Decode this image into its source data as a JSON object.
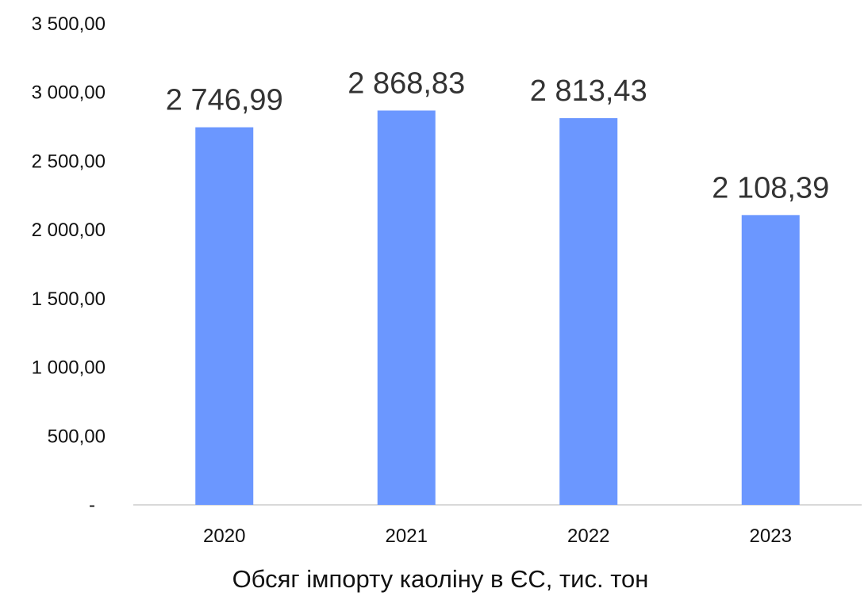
{
  "chart_data": {
    "type": "bar",
    "categories": [
      "2020",
      "2021",
      "2022",
      "2023"
    ],
    "values": [
      2746.99,
      2868.83,
      2813.43,
      2108.39
    ],
    "data_labels": [
      "2 746,99",
      "2 868,83",
      "2 813,43",
      "2 108,39"
    ],
    "y_ticks": [
      0,
      500,
      1000,
      1500,
      2000,
      2500,
      3000,
      3500
    ],
    "y_tick_labels": [
      "-",
      "500,00",
      "1 000,00",
      "1 500,00",
      "2 000,00",
      "2 500,00",
      "3 000,00",
      "3 500,00"
    ],
    "ylim": [
      0,
      3500
    ],
    "xlabel": "Обсяг імпорту каоліну  в ЄС, тис. тон",
    "ylabel": "",
    "title": "",
    "grid": false,
    "legend": "none",
    "colors": {
      "bar": "#6B97FF",
      "axis": "#D9D9D9"
    }
  }
}
